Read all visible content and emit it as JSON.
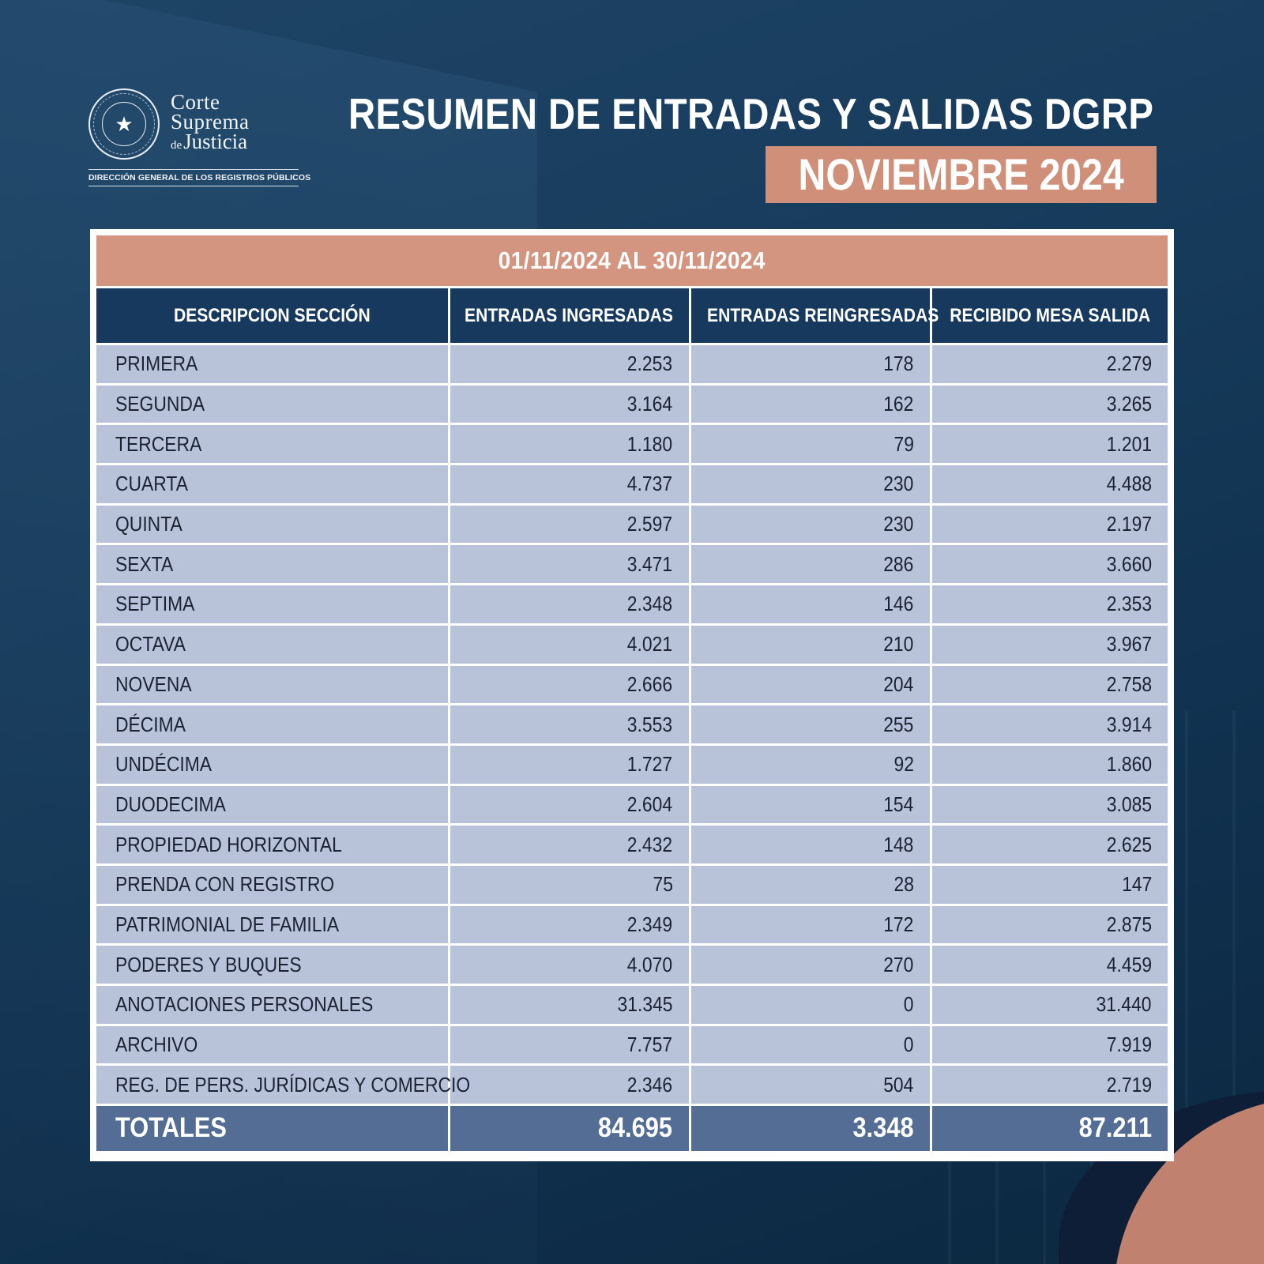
{
  "logo": {
    "line1": "Corte",
    "line2": "Suprema",
    "line3_prefix": "de",
    "line3": "Justicia",
    "seal_text": "República del Paraguay",
    "subtitle": "DIRECCIÓN GENERAL DE LOS REGISTROS PÚBLICOS"
  },
  "title": "RESUMEN DE ENTRADAS Y SALIDAS DGRP",
  "month": "NOVIEMBRE 2024",
  "period": "01/11/2024 AL 30/11/2024",
  "table": {
    "headers": [
      "DESCRIPCION SECCIÓN",
      "ENTRADAS INGRESADAS",
      "ENTRADAS REINGRESADAS",
      "RECIBIDO MESA SALIDA"
    ],
    "rows": [
      [
        "PRIMERA",
        "2.253",
        "178",
        "2.279"
      ],
      [
        "SEGUNDA",
        "3.164",
        "162",
        "3.265"
      ],
      [
        "TERCERA",
        "1.180",
        "79",
        "1.201"
      ],
      [
        "CUARTA",
        "4.737",
        "230",
        "4.488"
      ],
      [
        "QUINTA",
        "2.597",
        "230",
        "2.197"
      ],
      [
        "SEXTA",
        "3.471",
        "286",
        "3.660"
      ],
      [
        "SEPTIMA",
        "2.348",
        "146",
        "2.353"
      ],
      [
        "OCTAVA",
        "4.021",
        "210",
        "3.967"
      ],
      [
        "NOVENA",
        "2.666",
        "204",
        "2.758"
      ],
      [
        "DÉCIMA",
        "3.553",
        "255",
        "3.914"
      ],
      [
        "UNDÉCIMA",
        "1.727",
        "92",
        "1.860"
      ],
      [
        "DUODECIMA",
        "2.604",
        "154",
        "3.085"
      ],
      [
        "PROPIEDAD HORIZONTAL",
        "2.432",
        "148",
        "2.625"
      ],
      [
        "PRENDA CON REGISTRO",
        "75",
        "28",
        "147"
      ],
      [
        "PATRIMONIAL DE FAMILIA",
        "2.349",
        "172",
        "2.875"
      ],
      [
        "PODERES Y BUQUES",
        "4.070",
        "270",
        "4.459"
      ],
      [
        "ANOTACIONES PERSONALES",
        "31.345",
        "0",
        "31.440"
      ],
      [
        "ARCHIVO",
        "7.757",
        "0",
        "7.919"
      ],
      [
        "REG. DE PERS. JURÍDICAS Y COMERCIO",
        "2.346",
        "504",
        "2.719"
      ]
    ],
    "totals": [
      "TOTALES",
      "84.695",
      "3.348",
      "87.211"
    ]
  },
  "colors": {
    "background": "#163a5a",
    "accent_salmon": "#cf8f79",
    "header_navy": "#17395e",
    "row_fill": "#b8c3da",
    "totals_fill": "#546d94"
  }
}
